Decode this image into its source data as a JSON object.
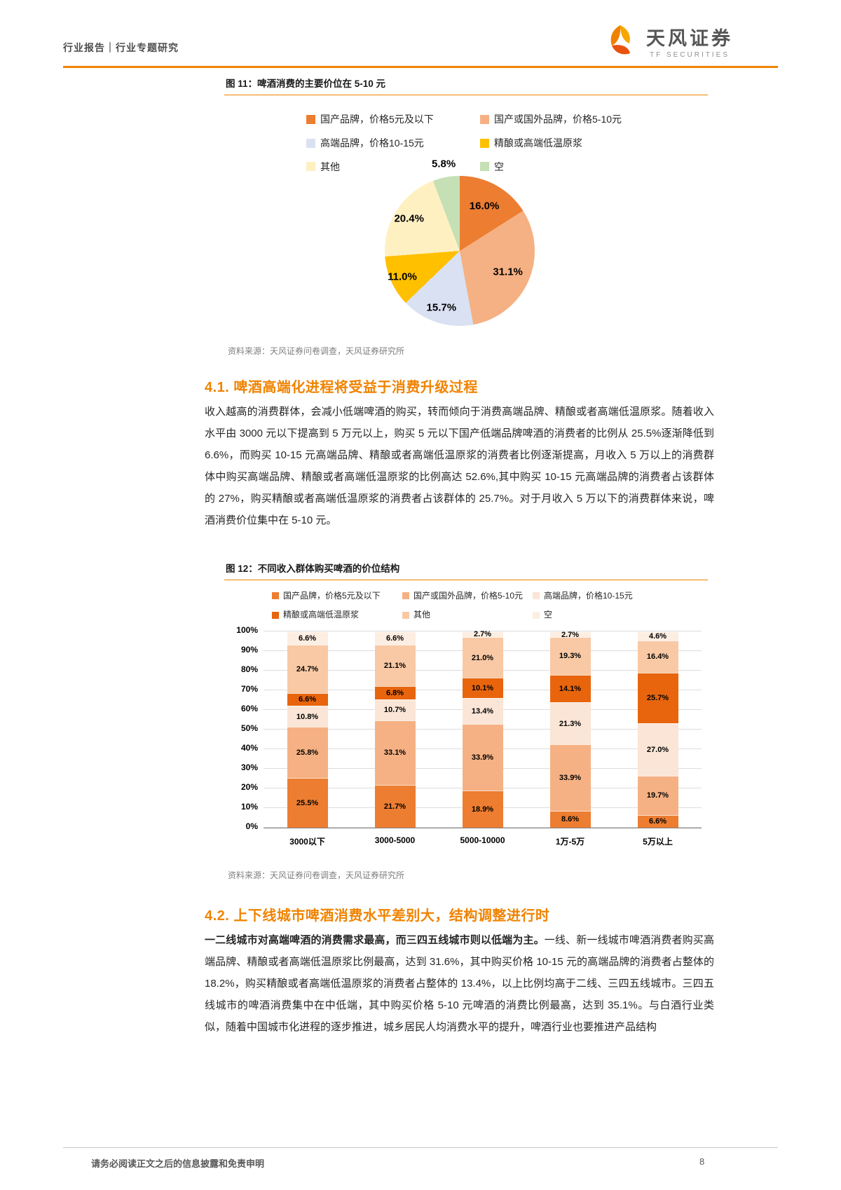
{
  "page": {
    "header": {
      "left_title": "行业报告｜行业专题研究",
      "brand_cn": "天风证券",
      "brand_en": "TF SECURITIES"
    },
    "footer": {
      "disclaimer": "请务必阅读正文之后的信息披露和免责申明",
      "page_number": "8"
    },
    "theme": {
      "accent": "#F08300"
    }
  },
  "figure11": {
    "title": "图 11：啤酒消费的主要价位在 5-10 元",
    "source": "资料来源：天风证券问卷调查，天风证券研究所"
  },
  "figure12": {
    "title": "图 12：不同收入群体购买啤酒的价位结构",
    "source": "资料来源：天风证券问卷调查，天风证券研究所"
  },
  "section41": {
    "heading": "4.1. 啤酒高端化进程将受益于消费升级过程",
    "body": "收入越高的消费群体，会减小低端啤酒的购买，转而倾向于消费高端品牌、精酿或者高端低温原浆。随着收入水平由 3000 元以下提高到 5 万元以上，购买 5 元以下国产低端品牌啤酒的消费者的比例从 25.5%逐渐降低到 6.6%，而购买 10-15 元高端品牌、精酿或者高端低温原浆的消费者比例逐渐提高，月收入 5 万以上的消费群体中购买高端品牌、精酿或者高端低温原浆的比例高达 52.6%,其中购买 10-15 元高端品牌的消费者占该群体的 27%，购买精酿或者高端低温原浆的消费者占该群体的 25.7%。对于月收入 5 万以下的消费群体来说，啤酒消费价位集中在 5-10 元。"
  },
  "section42": {
    "heading": "4.2. 上下线城市啤酒消费水平差别大，结构调整进行时",
    "lead": "一二线城市对高端啤酒的消费需求最高，而三四五线城市则以低端为主。",
    "rest": "一线、新一线城市啤酒消费者购买高端品牌、精酿或者高端低温原浆比例最高，达到 31.6%，其中购买价格 10-15 元的高端品牌的消费者占整体的 18.2%，购买精酿或者高端低温原浆的消费者占整体的 13.4%，以上比例均高于二线、三四五线城市。三四五线城市的啤酒消费集中在中低端，其中购买价格 5-10 元啤酒的消费比例最高，达到 35.1%。与白酒行业类似，随着中国城市化进程的逐步推进，城乡居民人均消费水平的提升，啤酒行业也要推进产品结构"
  },
  "chart_data": [
    {
      "type": "pie",
      "title": "啤酒消费的主要价位在 5-10 元",
      "labels": [
        "国产品牌，价格5元及以下",
        "国产或国外品牌，价格5-10元",
        "高端品牌，价格10-15元",
        "精酿或高端低温原浆",
        "其他",
        "空"
      ],
      "values": [
        16.0,
        31.1,
        15.7,
        11.0,
        20.4,
        5.8
      ],
      "colors": [
        "#ED7D31",
        "#F5B183",
        "#D9E1F2",
        "#FFC000",
        "#FFF0C2",
        "#C5E0B4"
      ],
      "legend_position": "top"
    },
    {
      "type": "bar",
      "stacked": true,
      "categories": [
        "3000以下",
        "3000-5000",
        "5000-10000",
        "1万-5万",
        "5万以上"
      ],
      "series": [
        {
          "name": "国产品牌，价格5元及以下",
          "color": "#ED7D31",
          "values": [
            25.5,
            21.7,
            18.9,
            8.6,
            6.6
          ]
        },
        {
          "name": "国产或国外品牌，价格5-10元",
          "color": "#F5B183",
          "values": [
            25.8,
            33.1,
            33.9,
            33.9,
            19.7
          ]
        },
        {
          "name": "高端品牌，价格10-15元",
          "color": "#FBE5D6",
          "values": [
            10.8,
            10.7,
            13.4,
            21.3,
            27.0
          ]
        },
        {
          "name": "精酿或高端低温原浆",
          "color": "#E8650D",
          "values": [
            6.6,
            6.8,
            10.1,
            14.1,
            25.7
          ]
        },
        {
          "name": "其他",
          "color": "#F8C9A4",
          "values": [
            24.7,
            21.1,
            21.0,
            19.3,
            16.4
          ]
        },
        {
          "name": "空",
          "color": "#FDEEE2",
          "values": [
            6.6,
            6.6,
            2.7,
            2.7,
            4.6
          ]
        }
      ],
      "ylim": [
        0,
        100
      ],
      "ytick_step": 10,
      "ytick_suffix": "%",
      "xlabel": "",
      "ylabel": "",
      "grid": true,
      "legend_position": "top"
    }
  ]
}
